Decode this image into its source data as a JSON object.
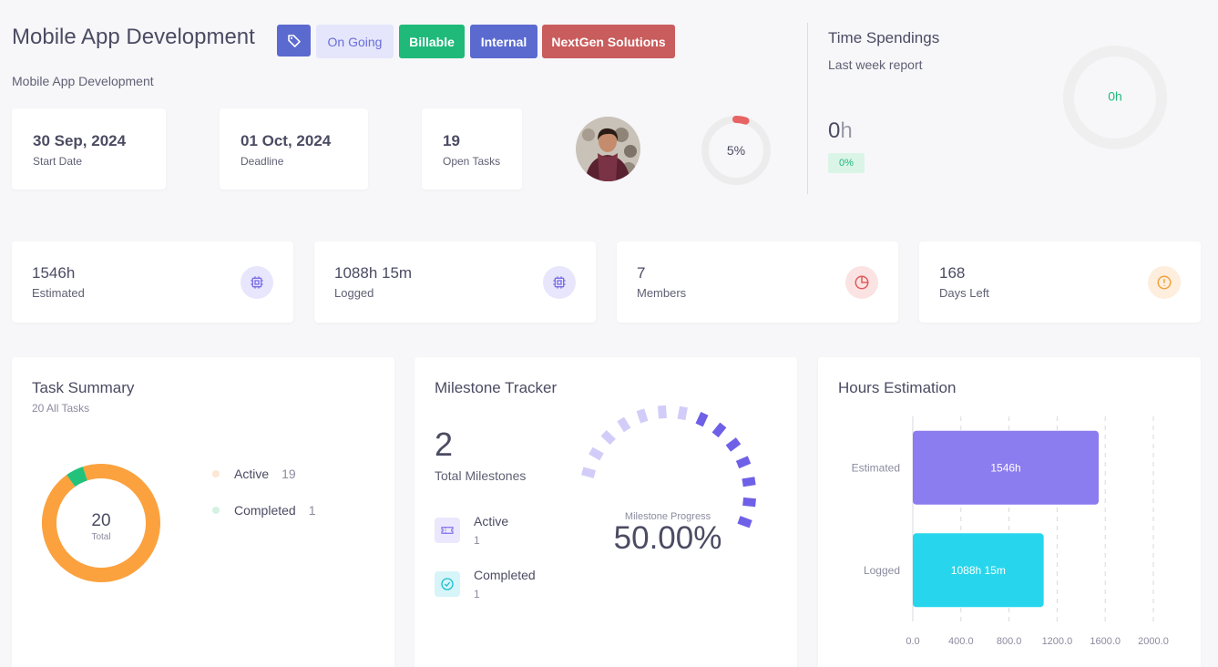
{
  "project": {
    "title": "Mobile App Development",
    "subtitle": "Mobile App Development",
    "badges": {
      "status": "On Going",
      "billable": "Billable",
      "internal": "Internal",
      "client": "NextGen Solutions"
    },
    "tag_icon": "tags-icon"
  },
  "info_cards": [
    {
      "value": "30 Sep, 2024",
      "label": "Start Date"
    },
    {
      "value": "01 Oct, 2024",
      "label": "Deadline"
    },
    {
      "value": "19",
      "label": "Open Tasks"
    }
  ],
  "progress": {
    "percent": 5,
    "label": "5%"
  },
  "time_spendings": {
    "title": "Time Spendings",
    "subtitle": "Last week report",
    "hours_num": "0",
    "hours_unit": "h",
    "percent": "0%",
    "ring_label": "0h"
  },
  "stats": [
    {
      "value": "1546h",
      "label": "Estimated",
      "icon": "cpu-icon",
      "color": "#7a6ee8"
    },
    {
      "value": "1088h 15m",
      "label": "Logged",
      "icon": "cpu-icon",
      "color": "#7a6ee8"
    },
    {
      "value": "7",
      "label": "Members",
      "icon": "pie-chart-icon",
      "color": "#e05a5a"
    },
    {
      "value": "168",
      "label": "Days Left",
      "icon": "alert-circle-icon",
      "color": "#f0a23c"
    }
  ],
  "task_summary": {
    "title": "Task Summary",
    "subtitle": "20 All Tasks",
    "total": "20",
    "total_label": "Total",
    "items": [
      {
        "label": "Active",
        "count": "19",
        "value": 19,
        "color": "#fba23f",
        "dot": "#fde7d2"
      },
      {
        "label": "Completed",
        "count": "1",
        "value": 1,
        "color": "#22c27a",
        "dot": "#d4f2e4"
      }
    ]
  },
  "milestones": {
    "title": "Milestone Tracker",
    "total": "2",
    "total_label": "Total Milestones",
    "progress_label": "Milestone Progress",
    "progress_value": "50.00%",
    "progress_fraction": 0.5,
    "items": [
      {
        "label": "Active",
        "count": "1",
        "icon": "ticket-icon",
        "color": "#8b7ef0",
        "bg": "#ebe8fd"
      },
      {
        "label": "Completed",
        "count": "1",
        "icon": "check-circle-icon",
        "color": "#1bbfd3",
        "bg": "#d7f5f9"
      }
    ]
  },
  "hours_estimation": {
    "title": "Hours Estimation"
  },
  "chart_data": {
    "type": "bar",
    "orientation": "horizontal",
    "categories": [
      "Estimated",
      "Logged"
    ],
    "values": [
      1546,
      1088.25
    ],
    "data_labels": [
      "1546h",
      "1088h 15m"
    ],
    "colors": [
      "#8b7cef",
      "#27d6ec"
    ],
    "title": "Hours Estimation",
    "xlim": [
      0,
      2000
    ],
    "x_ticks": [
      "0.0",
      "400.0",
      "800.0",
      "1200.0",
      "1600.0",
      "2000.0"
    ],
    "grid": "vertical dashed"
  }
}
